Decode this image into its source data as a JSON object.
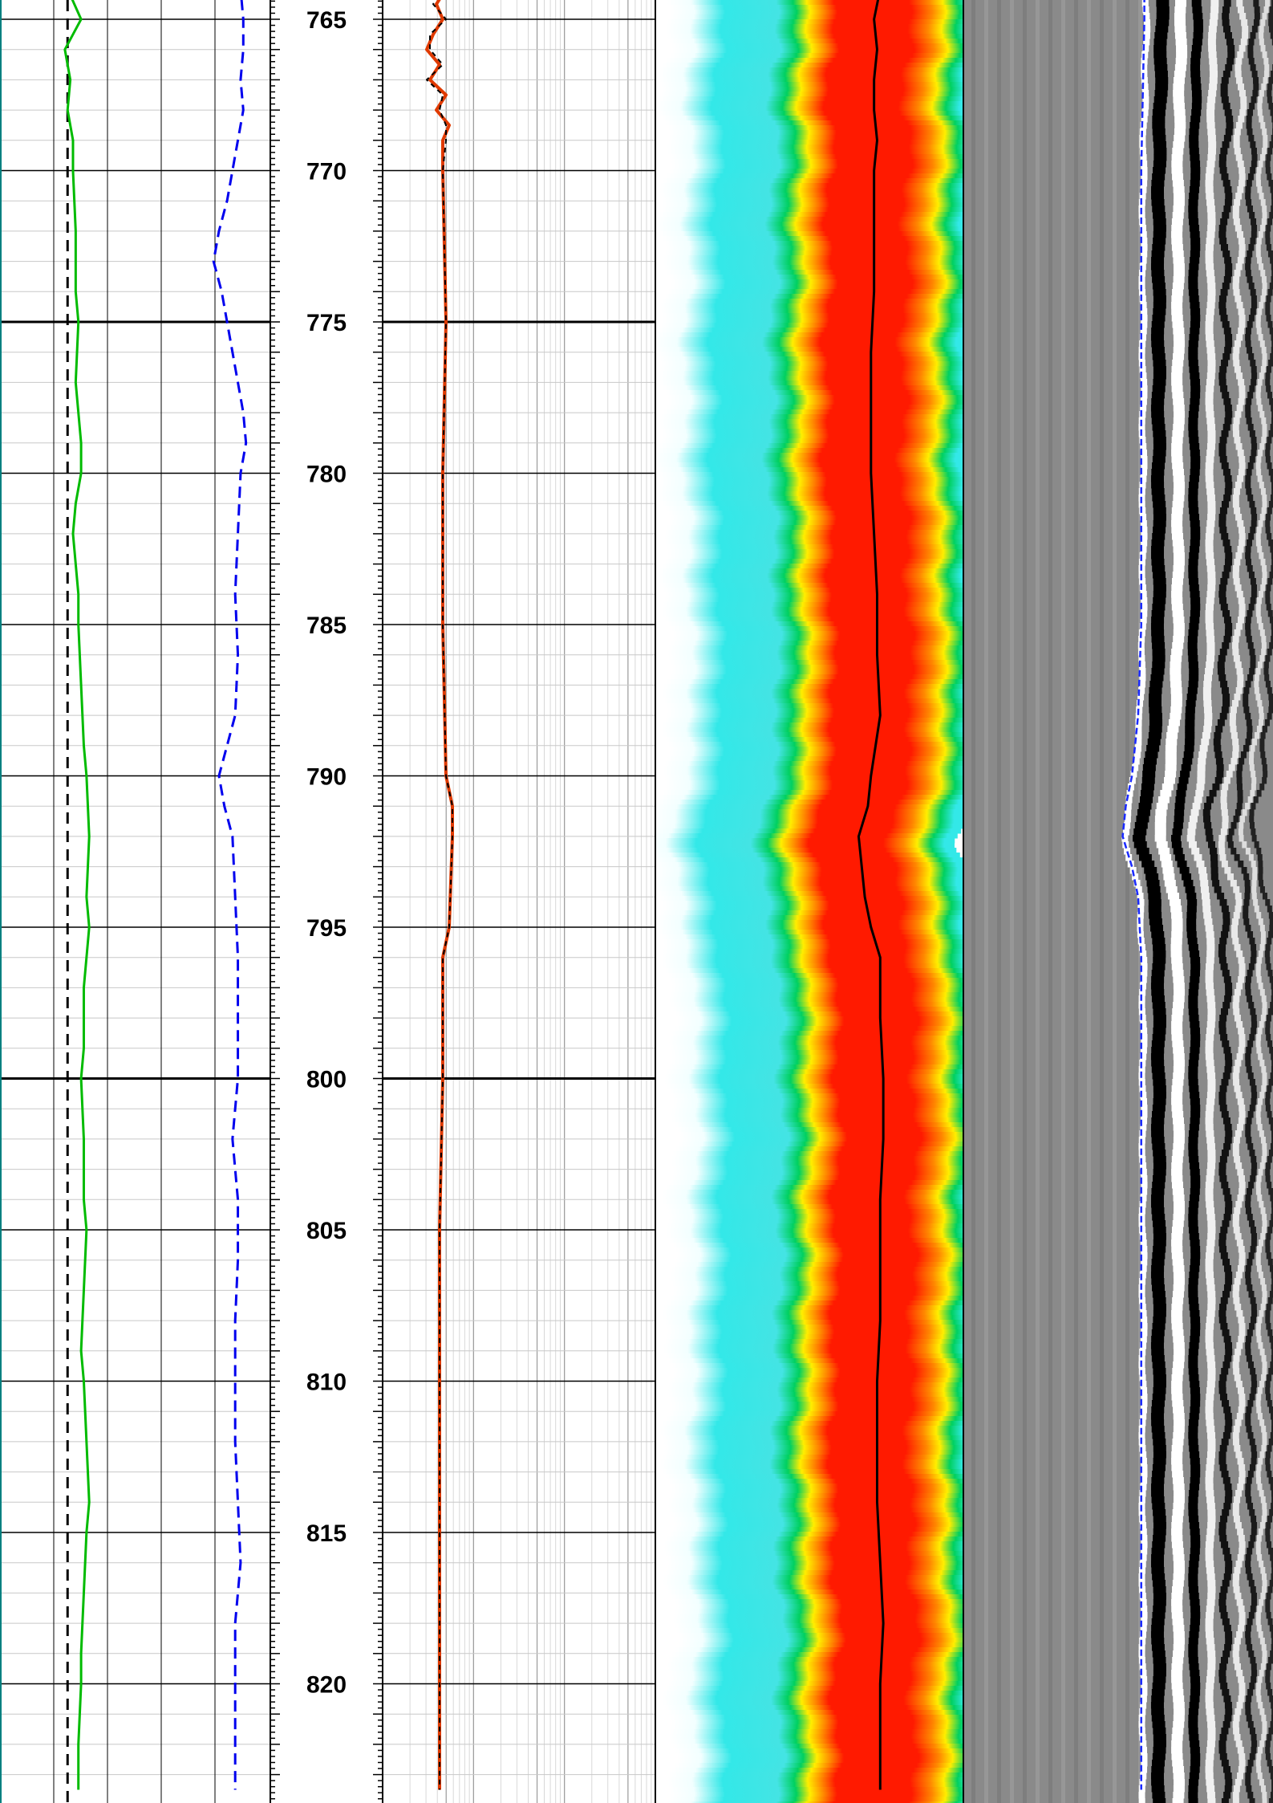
{
  "chart_data": [
    {
      "type": "line",
      "track": "track-1",
      "series": [
        {
          "color": "#00bb00",
          "style": "solid",
          "y_depth": [
            762,
            763,
            764,
            765,
            765.5,
            766,
            767,
            768,
            769,
            770,
            772,
            774,
            775,
            777,
            779,
            780,
            781,
            782,
            784,
            785,
            787,
            789,
            790,
            792,
            794,
            795,
            797,
            799,
            800,
            802,
            804,
            805,
            807,
            809,
            810,
            812,
            814,
            815,
            817,
            819,
            820,
            822,
            823.5
          ],
          "x": [
            0.26,
            0.27,
            0.25,
            0.3,
            0.27,
            0.24,
            0.26,
            0.25,
            0.27,
            0.27,
            0.28,
            0.28,
            0.29,
            0.28,
            0.3,
            0.3,
            0.28,
            0.27,
            0.29,
            0.29,
            0.3,
            0.31,
            0.32,
            0.33,
            0.32,
            0.33,
            0.31,
            0.31,
            0.3,
            0.31,
            0.31,
            0.32,
            0.31,
            0.3,
            0.31,
            0.32,
            0.33,
            0.32,
            0.31,
            0.3,
            0.3,
            0.29,
            0.29
          ]
        },
        {
          "color": "#0000ee",
          "style": "dashed",
          "y_depth": [
            762,
            764,
            765,
            766,
            767,
            768,
            769,
            770,
            771,
            772,
            773,
            774,
            775,
            776,
            777,
            778,
            779,
            780,
            782,
            784,
            786,
            788,
            789,
            790,
            791,
            792,
            794,
            796,
            798,
            800,
            802,
            804,
            806,
            808,
            810,
            812,
            814,
            816,
            818,
            820,
            822,
            823.5
          ],
          "x": [
            0.89,
            0.89,
            0.9,
            0.9,
            0.89,
            0.9,
            0.88,
            0.86,
            0.84,
            0.81,
            0.79,
            0.82,
            0.84,
            0.86,
            0.88,
            0.9,
            0.91,
            0.89,
            0.88,
            0.87,
            0.88,
            0.87,
            0.84,
            0.81,
            0.83,
            0.86,
            0.87,
            0.88,
            0.88,
            0.88,
            0.86,
            0.88,
            0.88,
            0.87,
            0.87,
            0.87,
            0.88,
            0.89,
            0.87,
            0.87,
            0.87,
            0.87
          ]
        }
      ],
      "reference_lines": [
        {
          "x": 0.25,
          "color": "#000000",
          "style": "dashed"
        }
      ]
    },
    {
      "type": "line",
      "track": "depth-track",
      "x_scale": "log",
      "series": [
        {
          "color": "#e03a00",
          "style": "solid",
          "y_depth": [
            762,
            763,
            764,
            764.5,
            765,
            765.5,
            766,
            766.5,
            767,
            767.5,
            768,
            768.5,
            769,
            770,
            775,
            780,
            785,
            790,
            791,
            792,
            795,
            796,
            800,
            805,
            810,
            815,
            820,
            823.5
          ],
          "x": [
            2.0,
            1.9,
            2.1,
            1.8,
            2.0,
            1.7,
            1.5,
            1.9,
            1.6,
            2.1,
            1.8,
            2.2,
            2.0,
            2.0,
            2.1,
            2.0,
            2.0,
            2.1,
            2.3,
            2.3,
            2.2,
            2.0,
            2.0,
            1.9,
            1.9,
            1.9,
            1.9,
            1.9
          ]
        },
        {
          "color": "#000000",
          "style": "dashed",
          "y_depth": [
            762,
            763,
            764,
            764.5,
            765,
            765.5,
            766,
            766.5,
            767,
            767.5,
            768,
            768.5,
            769,
            770,
            775,
            780,
            785,
            790,
            791,
            792,
            795,
            796,
            800,
            805,
            810,
            815,
            820,
            823.5
          ],
          "x": [
            2.1,
            1.8,
            2.0,
            1.7,
            2.1,
            1.6,
            1.6,
            2.0,
            1.5,
            2.0,
            1.9,
            2.1,
            2.1,
            2.0,
            2.1,
            2.0,
            2.0,
            2.1,
            2.3,
            2.3,
            2.2,
            2.0,
            2.0,
            1.9,
            1.9,
            1.9,
            1.9,
            1.9
          ]
        }
      ]
    },
    {
      "type": "heatmap",
      "track": "track-3",
      "colors": [
        "#ffffff",
        "#33e8e8",
        "#00d060",
        "#ffee00",
        "#ff8800",
        "#ff1a00"
      ],
      "center_line": {
        "color": "#000000",
        "y_depth": [
          762,
          763,
          764,
          765,
          766,
          767,
          768,
          769,
          770,
          772,
          774,
          776,
          778,
          780,
          782,
          784,
          786,
          788,
          790,
          791,
          792,
          794,
          795,
          796,
          798,
          800,
          802,
          804,
          806,
          808,
          810,
          812,
          814,
          816,
          818,
          820,
          822,
          823.5
        ],
        "x": [
          0.73,
          0.74,
          0.73,
          0.71,
          0.72,
          0.71,
          0.71,
          0.72,
          0.71,
          0.71,
          0.71,
          0.7,
          0.7,
          0.7,
          0.71,
          0.72,
          0.72,
          0.73,
          0.7,
          0.69,
          0.66,
          0.68,
          0.7,
          0.73,
          0.73,
          0.74,
          0.74,
          0.73,
          0.73,
          0.73,
          0.72,
          0.72,
          0.72,
          0.73,
          0.74,
          0.73,
          0.73,
          0.73
        ]
      }
    },
    {
      "type": "heatmap",
      "track": "track-4",
      "colors": [
        "#000000",
        "#808080",
        "#ffffff"
      ],
      "trace_line": {
        "color": "#1a2aff",
        "style": "dashed",
        "y_depth": [
          762,
          765,
          770,
          775,
          780,
          785,
          788,
          790,
          791,
          792,
          793,
          794,
          796,
          800,
          805,
          810,
          815,
          820,
          823.5
        ],
        "x": [
          0.6,
          0.6,
          0.59,
          0.59,
          0.59,
          0.59,
          0.58,
          0.56,
          0.54,
          0.53,
          0.56,
          0.58,
          0.59,
          0.59,
          0.59,
          0.59,
          0.59,
          0.59,
          0.59
        ]
      }
    }
  ],
  "depth_labels": [
    "765",
    "770",
    "775",
    "780",
    "785",
    "790",
    "795",
    "800",
    "805",
    "810",
    "815",
    "820"
  ],
  "colors": {
    "grid_major": "#000000",
    "grid_minor": "#c8c8c8",
    "track_border": "#008080"
  }
}
